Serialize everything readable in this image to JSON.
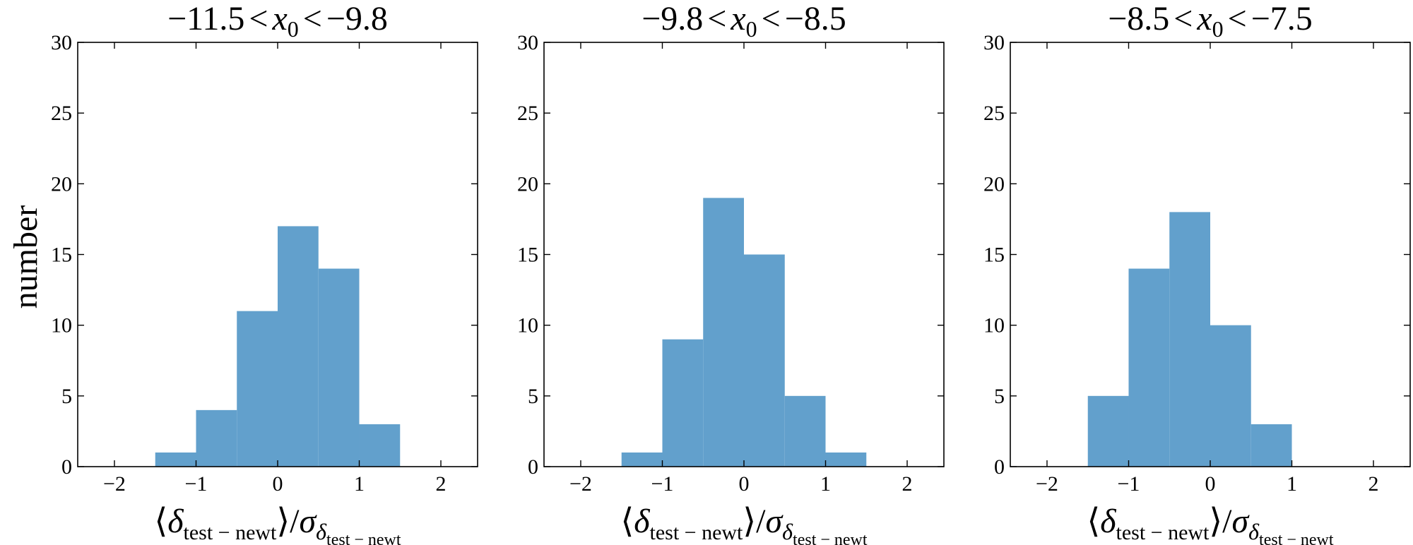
{
  "figure": {
    "ylabel": "number",
    "xlabel": {
      "langle": "⟨",
      "delta": "δ",
      "delta_sub": "test − newt",
      "rangle": "⟩",
      "slash": "/",
      "sigma": "σ",
      "sigma_sub_delta": "δ",
      "sigma_sub_sub": "test − newt"
    }
  },
  "chart_data": [
    {
      "type": "bar",
      "title": "−11.5 < x0 < −9.8",
      "title_parts": {
        "lower": "−11.5",
        "lt1": "<",
        "var": "x",
        "var_sub": "0",
        "lt2": "<",
        "upper": "−9.8"
      },
      "bin_edges": [
        -1.5,
        -1.0,
        -0.5,
        0.0,
        0.5,
        1.0,
        1.5
      ],
      "values": [
        1,
        4,
        11,
        17,
        14,
        3
      ],
      "xlim": [
        -2.45,
        2.45
      ],
      "ylim": [
        0,
        30
      ],
      "xticks": [
        -2,
        -1,
        0,
        1,
        2
      ],
      "xtick_labels": [
        "−2",
        "−1",
        "0",
        "1",
        "2"
      ],
      "yticks": [
        0,
        5,
        10,
        15,
        20,
        25,
        30
      ],
      "ytick_labels": [
        "0",
        "5",
        "10",
        "15",
        "20",
        "25",
        "30"
      ],
      "color": "#62a0cc",
      "grid": false
    },
    {
      "type": "bar",
      "title": "−9.8 < x0 < −8.5",
      "title_parts": {
        "lower": "−9.8",
        "lt1": "<",
        "var": "x",
        "var_sub": "0",
        "lt2": "<",
        "upper": "−8.5"
      },
      "bin_edges": [
        -1.5,
        -1.0,
        -0.5,
        0.0,
        0.5,
        1.0,
        1.5
      ],
      "values": [
        1,
        9,
        19,
        15,
        5,
        1
      ],
      "xlim": [
        -2.45,
        2.45
      ],
      "ylim": [
        0,
        30
      ],
      "xticks": [
        -2,
        -1,
        0,
        1,
        2
      ],
      "xtick_labels": [
        "−2",
        "−1",
        "0",
        "1",
        "2"
      ],
      "yticks": [
        0,
        5,
        10,
        15,
        20,
        25,
        30
      ],
      "ytick_labels": [
        "0",
        "5",
        "10",
        "15",
        "20",
        "25",
        "30"
      ],
      "color": "#62a0cc",
      "grid": false
    },
    {
      "type": "bar",
      "title": "−8.5 < x0 < −7.5",
      "title_parts": {
        "lower": "−8.5",
        "lt1": "<",
        "var": "x",
        "var_sub": "0",
        "lt2": "<",
        "upper": "−7.5"
      },
      "bin_edges": [
        -1.5,
        -1.0,
        -0.5,
        0.0,
        0.5,
        1.0
      ],
      "values": [
        5,
        14,
        18,
        10,
        3
      ],
      "xlim": [
        -2.45,
        2.45
      ],
      "ylim": [
        0,
        30
      ],
      "xticks": [
        -2,
        -1,
        0,
        1,
        2
      ],
      "xtick_labels": [
        "−2",
        "−1",
        "0",
        "1",
        "2"
      ],
      "yticks": [
        0,
        5,
        10,
        15,
        20,
        25,
        30
      ],
      "ytick_labels": [
        "0",
        "5",
        "10",
        "15",
        "20",
        "25",
        "30"
      ],
      "color": "#62a0cc",
      "grid": false
    }
  ]
}
